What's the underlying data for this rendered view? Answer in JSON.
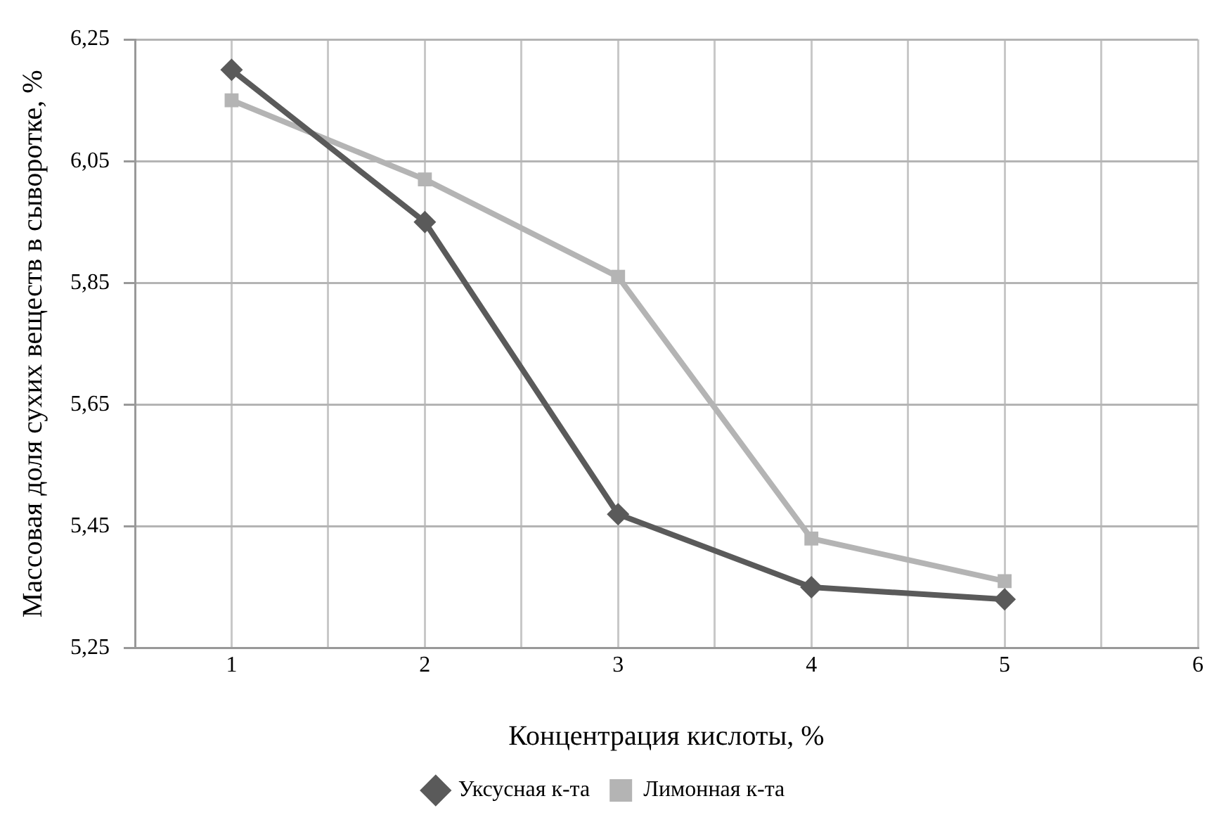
{
  "chart_data": {
    "type": "line",
    "xlabel": "Концентрация кислоты, %",
    "ylabel": "Массовая доля сухих веществ в сыворотке, %",
    "x": [
      1,
      2,
      3,
      4,
      5
    ],
    "series": [
      {
        "name": "Уксусная к-та",
        "color": "#5a5a5a",
        "marker": "diamond",
        "values": [
          6.2,
          5.95,
          5.47,
          5.35,
          5.33
        ]
      },
      {
        "name": "Лимонная к-та",
        "color": "#b4b4b4",
        "marker": "square",
        "values": [
          6.15,
          6.02,
          5.86,
          5.43,
          5.36
        ]
      }
    ],
    "xlim": [
      0.5,
      6
    ],
    "xticks": [
      {
        "value": 0.5,
        "label": null
      },
      1,
      {
        "value": 1.5,
        "label": null
      },
      2,
      {
        "value": 2.5,
        "label": null
      },
      3,
      {
        "value": 3.5,
        "label": null
      },
      4,
      {
        "value": 4.5,
        "label": null
      },
      5,
      {
        "value": 5.5,
        "label": null
      },
      6
    ],
    "ylim": [
      5.25,
      6.25
    ],
    "yticks": [
      {
        "value": 5.25,
        "label": "5,25"
      },
      {
        "value": 5.45,
        "label": "5,45"
      },
      {
        "value": 5.65,
        "label": "5,65"
      },
      {
        "value": 5.85,
        "label": "5,85"
      },
      {
        "value": 6.05,
        "label": "6,05"
      },
      {
        "value": 6.25,
        "label": "6,25"
      }
    ],
    "grid": true,
    "legend": "bottom"
  }
}
